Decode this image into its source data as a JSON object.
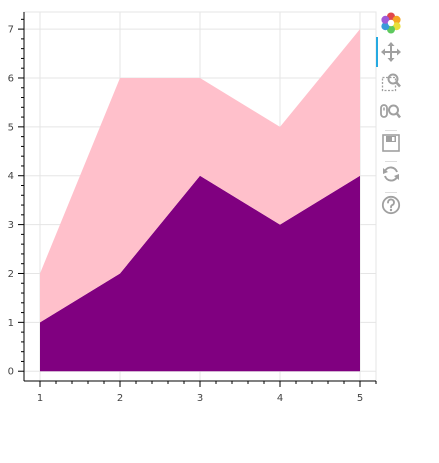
{
  "chart_data": {
    "type": "area",
    "stacked": true,
    "x": [
      1,
      2,
      3,
      4,
      5
    ],
    "series": [
      {
        "values": [
          1,
          2,
          4,
          3,
          4
        ],
        "color": "#800080"
      },
      {
        "values": [
          1,
          4,
          2,
          2,
          3
        ],
        "color": "#ffc0cb"
      }
    ],
    "xlim": [
      0.8,
      5.2
    ],
    "ylim": [
      -0.2,
      7.35
    ],
    "xticks": [
      "1",
      "2",
      "3",
      "4",
      "5"
    ],
    "yticks": [
      "0",
      "1",
      "2",
      "3",
      "4",
      "5",
      "6",
      "7"
    ],
    "grid": true,
    "xlabel": "",
    "ylabel": "",
    "title": ""
  },
  "toolbar": {
    "tools": [
      {
        "name": "bokeh-logo-icon",
        "interactable": false
      },
      {
        "name": "pan-tool-icon",
        "interactable": true,
        "active": true
      },
      {
        "name": "box-zoom-tool-icon",
        "interactable": true
      },
      {
        "name": "wheel-zoom-tool-icon",
        "interactable": true
      },
      {
        "name": "save-tool-icon",
        "interactable": true
      },
      {
        "name": "reset-tool-icon",
        "interactable": true
      },
      {
        "name": "help-tool-icon",
        "interactable": true
      }
    ]
  }
}
